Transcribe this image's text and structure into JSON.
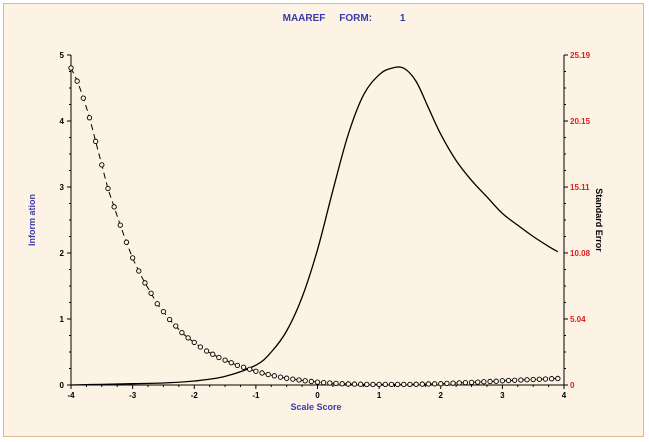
{
  "chart_data": {
    "type": "line",
    "title": "MAAREF     FORM:          1",
    "xlabel": "Scale Score",
    "ylabel_left": "Inform ation",
    "ylabel_right": "Standard Error",
    "xlim": [
      -4,
      4
    ],
    "ylim_left": [
      0,
      5
    ],
    "ylim_right": [
      0,
      25.19
    ],
    "x_ticks": [
      "-4",
      "-3",
      "-2",
      "-1",
      "0",
      "1",
      "2",
      "3",
      "4"
    ],
    "y_left_ticks": [
      "0",
      "1",
      "2",
      "3",
      "4",
      "5"
    ],
    "y_right_ticks": [
      "0",
      "5.04",
      "10.08",
      "15.11",
      "20.15",
      "25.19"
    ],
    "grid": false,
    "colors": {
      "left_axis_text": "#3a3aa8",
      "right_axis_ticks": "#e01b1b",
      "curves": "#000000"
    },
    "series": [
      {
        "axis": "left",
        "style": "solid",
        "x": [
          -4.0,
          -3.5,
          -3.0,
          -2.5,
          -2.0,
          -1.5,
          -1.0,
          -0.75,
          -0.5,
          -0.25,
          0.0,
          0.25,
          0.5,
          0.75,
          1.0,
          1.2,
          1.4,
          1.6,
          1.8,
          2.0,
          2.25,
          2.5,
          2.75,
          3.0,
          3.25,
          3.5,
          3.75,
          3.9
        ],
        "values": [
          0.0,
          0.01,
          0.02,
          0.03,
          0.06,
          0.13,
          0.3,
          0.5,
          0.82,
          1.33,
          2.05,
          2.95,
          3.8,
          4.4,
          4.7,
          4.8,
          4.8,
          4.6,
          4.2,
          3.8,
          3.4,
          3.1,
          2.85,
          2.6,
          2.42,
          2.25,
          2.1,
          2.02
        ]
      },
      {
        "axis": "right",
        "style": "dashed-with-circles",
        "x": [
          -4.0,
          -3.9,
          -3.8,
          -3.7,
          -3.6,
          -3.5,
          -3.4,
          -3.3,
          -3.2,
          -3.1,
          -3.0,
          -2.9,
          -2.8,
          -2.7,
          -2.6,
          -2.5,
          -2.4,
          -2.3,
          -2.2,
          -2.1,
          -2.0,
          -1.9,
          -1.8,
          -1.7,
          -1.6,
          -1.5,
          -1.4,
          -1.3,
          -1.2,
          -1.1,
          -1.0,
          -0.9,
          -0.8,
          -0.7,
          -0.6,
          -0.5,
          -0.4,
          -0.3,
          -0.2,
          -0.1,
          0.0,
          0.1,
          0.2,
          0.3,
          0.4,
          0.5,
          0.6,
          0.7,
          0.8,
          0.9,
          1.0,
          1.1,
          1.2,
          1.3,
          1.4,
          1.5,
          1.6,
          1.7,
          1.8,
          1.9,
          2.0,
          2.1,
          2.2,
          2.3,
          2.4,
          2.5,
          2.6,
          2.7,
          2.8,
          2.9,
          3.0,
          3.1,
          3.2,
          3.3,
          3.4,
          3.5,
          3.6,
          3.7,
          3.8,
          3.9
        ],
        "values": [
          24.2,
          23.2,
          21.9,
          20.4,
          18.6,
          16.8,
          15.0,
          13.6,
          12.2,
          10.9,
          9.7,
          8.7,
          7.8,
          7.0,
          6.2,
          5.6,
          5.0,
          4.5,
          4.0,
          3.6,
          3.25,
          2.9,
          2.6,
          2.35,
          2.1,
          1.9,
          1.7,
          1.5,
          1.35,
          1.2,
          1.05,
          0.92,
          0.8,
          0.7,
          0.6,
          0.52,
          0.45,
          0.38,
          0.32,
          0.27,
          0.22,
          0.18,
          0.15,
          0.12,
          0.1,
          0.08,
          0.07,
          0.06,
          0.05,
          0.05,
          0.05,
          0.05,
          0.05,
          0.05,
          0.05,
          0.05,
          0.06,
          0.07,
          0.08,
          0.09,
          0.1,
          0.12,
          0.14,
          0.16,
          0.18,
          0.2,
          0.22,
          0.25,
          0.27,
          0.29,
          0.32,
          0.34,
          0.36,
          0.38,
          0.4,
          0.42,
          0.44,
          0.46,
          0.48,
          0.5
        ]
      }
    ]
  }
}
